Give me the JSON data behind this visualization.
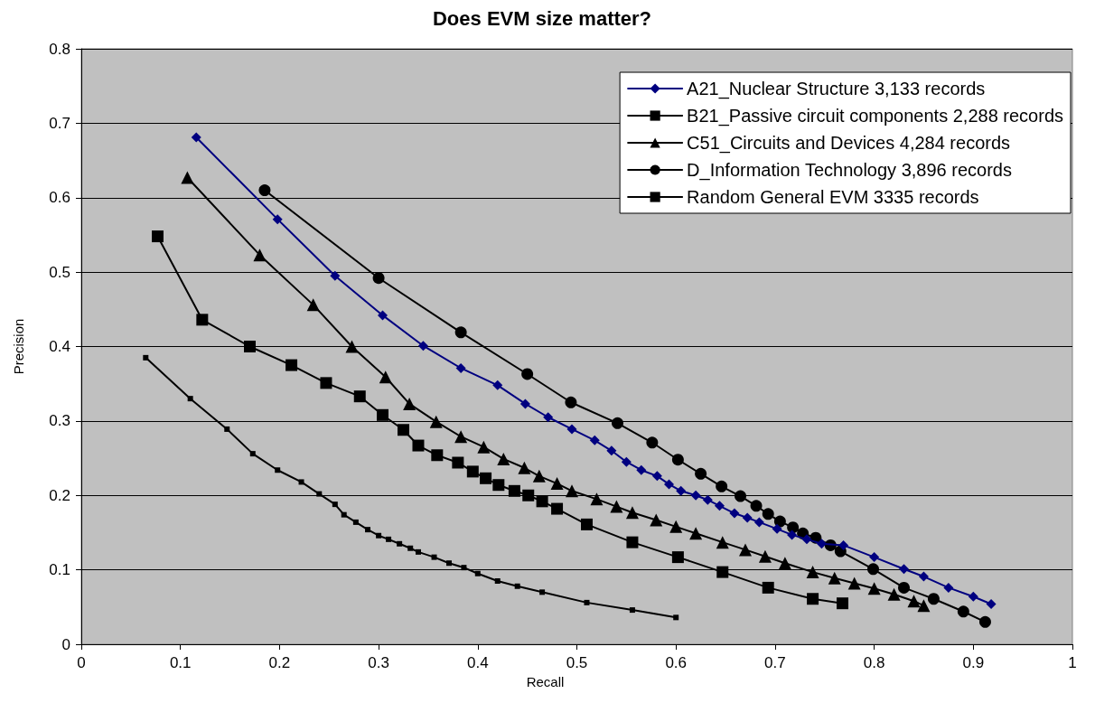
{
  "chart_data": {
    "type": "line",
    "title": "Does EVM size matter?",
    "xlabel": "Recall",
    "ylabel": "Precision",
    "xlim": [
      0,
      1
    ],
    "xticks": [
      0,
      0.1,
      0.2,
      0.3,
      0.4,
      0.5,
      0.6,
      0.7,
      0.8,
      0.9,
      1
    ],
    "ylim": [
      0,
      0.8
    ],
    "yticks": [
      0,
      0.1,
      0.2,
      0.3,
      0.4,
      0.5,
      0.6,
      0.7,
      0.8
    ],
    "grid": "y",
    "legend": "top right",
    "line_style": "solid",
    "series": [
      {
        "name": "A21_Nuclear Structure 3,133 records",
        "color": "#000080",
        "marker": "diamond",
        "x": [
          0.116,
          0.198,
          0.256,
          0.304,
          0.345,
          0.383,
          0.42,
          0.448,
          0.471,
          0.495,
          0.518,
          0.535,
          0.55,
          0.565,
          0.581,
          0.593,
          0.605,
          0.62,
          0.632,
          0.644,
          0.659,
          0.672,
          0.684,
          0.702,
          0.717,
          0.732,
          0.747,
          0.769,
          0.8,
          0.83,
          0.85,
          0.875,
          0.9,
          0.918
        ],
        "values": [
          0.681,
          0.571,
          0.495,
          0.442,
          0.401,
          0.371,
          0.348,
          0.323,
          0.305,
          0.289,
          0.274,
          0.26,
          0.245,
          0.234,
          0.226,
          0.215,
          0.206,
          0.2,
          0.194,
          0.186,
          0.176,
          0.17,
          0.164,
          0.155,
          0.147,
          0.141,
          0.135,
          0.133,
          0.117,
          0.101,
          0.091,
          0.076,
          0.064,
          0.054
        ]
      },
      {
        "name": "B21_Passive circuit components 2,288 records",
        "color": "#000000",
        "marker": "square",
        "x": [
          0.077,
          0.122,
          0.17,
          0.212,
          0.247,
          0.281,
          0.304,
          0.325,
          0.34,
          0.359,
          0.38,
          0.395,
          0.408,
          0.421,
          0.437,
          0.451,
          0.465,
          0.48,
          0.51,
          0.556,
          0.602,
          0.647,
          0.693,
          0.738,
          0.768
        ],
        "values": [
          0.548,
          0.436,
          0.4,
          0.375,
          0.351,
          0.333,
          0.308,
          0.288,
          0.267,
          0.254,
          0.244,
          0.232,
          0.223,
          0.214,
          0.206,
          0.2,
          0.192,
          0.182,
          0.161,
          0.137,
          0.117,
          0.097,
          0.076,
          0.061,
          0.055
        ]
      },
      {
        "name": "C51_Circuits and Devices 4,284 records",
        "color": "#000000",
        "marker": "triangle",
        "x": [
          0.107,
          0.18,
          0.234,
          0.273,
          0.307,
          0.331,
          0.358,
          0.383,
          0.406,
          0.426,
          0.447,
          0.462,
          0.48,
          0.495,
          0.52,
          0.54,
          0.556,
          0.58,
          0.6,
          0.62,
          0.647,
          0.67,
          0.69,
          0.71,
          0.738,
          0.76,
          0.78,
          0.8,
          0.82,
          0.84,
          0.85
        ],
        "values": [
          0.627,
          0.523,
          0.456,
          0.4,
          0.359,
          0.323,
          0.299,
          0.279,
          0.265,
          0.249,
          0.237,
          0.226,
          0.216,
          0.206,
          0.195,
          0.185,
          0.177,
          0.167,
          0.158,
          0.149,
          0.137,
          0.127,
          0.118,
          0.109,
          0.097,
          0.089,
          0.082,
          0.075,
          0.067,
          0.058,
          0.052
        ]
      },
      {
        "name": "D_Information Technology 3,896 records",
        "color": "#000000",
        "marker": "circle",
        "x": [
          0.185,
          0.3,
          0.383,
          0.45,
          0.494,
          0.541,
          0.576,
          0.602,
          0.625,
          0.646,
          0.665,
          0.681,
          0.693,
          0.705,
          0.718,
          0.728,
          0.741,
          0.756,
          0.766,
          0.799,
          0.83,
          0.86,
          0.89,
          0.912
        ],
        "values": [
          0.61,
          0.492,
          0.419,
          0.363,
          0.325,
          0.297,
          0.271,
          0.248,
          0.229,
          0.212,
          0.199,
          0.186,
          0.175,
          0.165,
          0.157,
          0.149,
          0.143,
          0.133,
          0.125,
          0.101,
          0.076,
          0.061,
          0.044,
          0.03
        ]
      },
      {
        "name": "Random General EVM 3335 records",
        "color": "#000000",
        "marker": "square",
        "x": [
          0.065,
          0.11,
          0.147,
          0.173,
          0.198,
          0.222,
          0.24,
          0.256,
          0.265,
          0.277,
          0.289,
          0.3,
          0.31,
          0.321,
          0.332,
          0.34,
          0.356,
          0.371,
          0.386,
          0.4,
          0.42,
          0.44,
          0.465,
          0.51,
          0.556,
          0.6
        ],
        "values": [
          0.385,
          0.33,
          0.289,
          0.256,
          0.234,
          0.218,
          0.202,
          0.188,
          0.174,
          0.164,
          0.154,
          0.146,
          0.141,
          0.135,
          0.129,
          0.124,
          0.117,
          0.109,
          0.103,
          0.095,
          0.085,
          0.078,
          0.07,
          0.056,
          0.046,
          0.036
        ]
      }
    ]
  }
}
